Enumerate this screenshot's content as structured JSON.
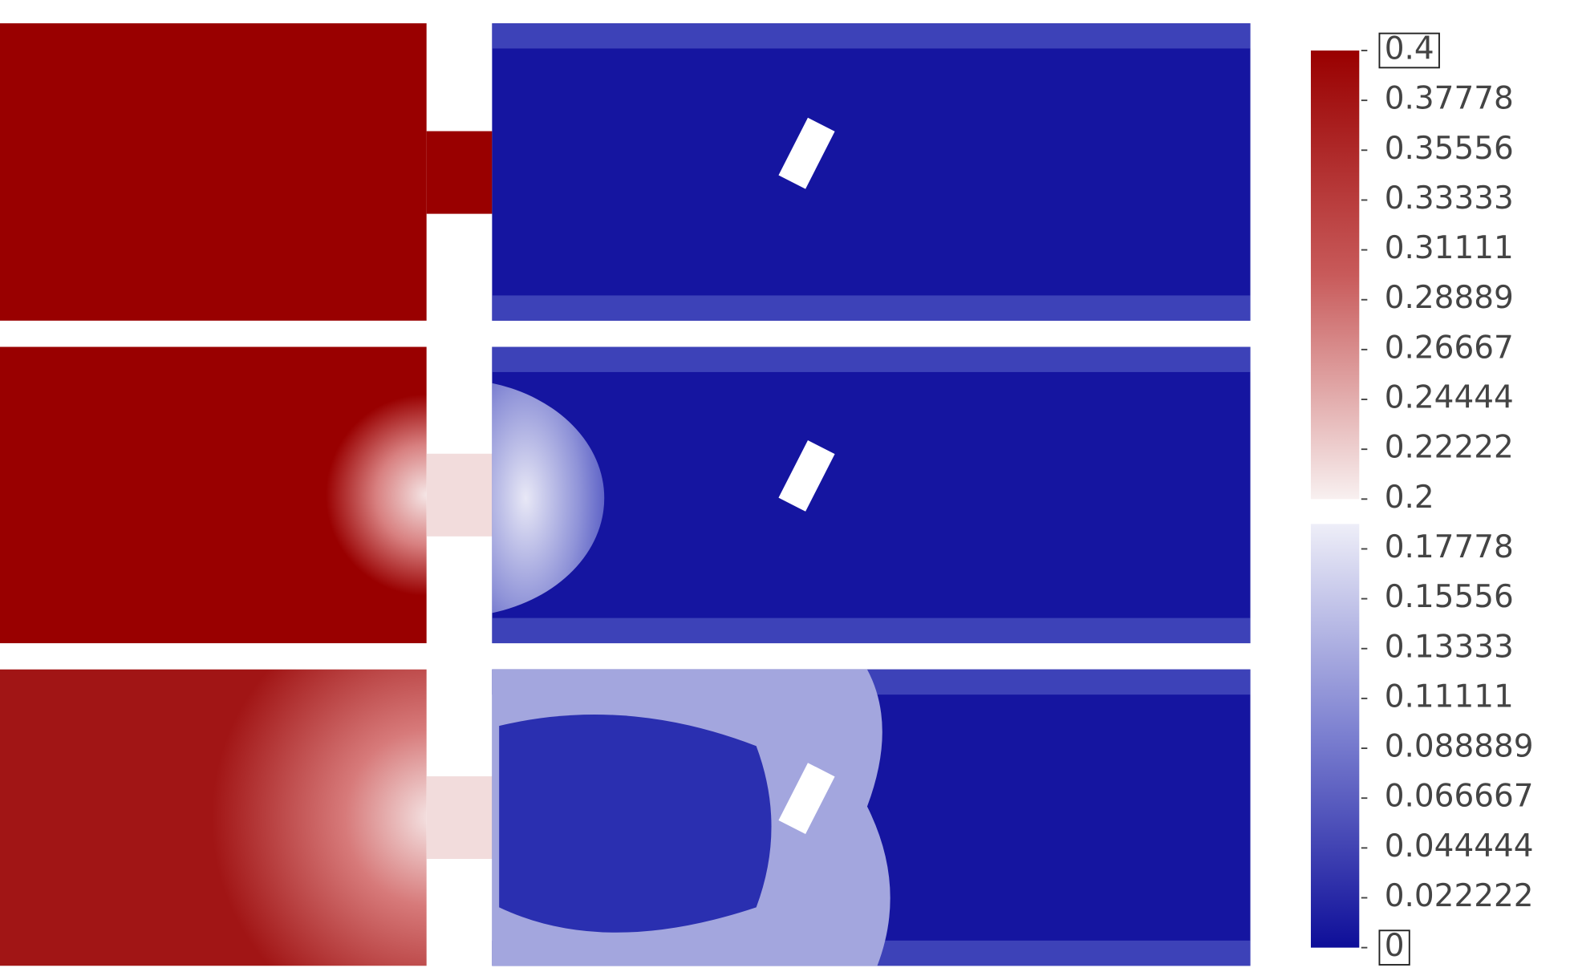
{
  "colorbar": {
    "range": [
      0,
      0.4
    ],
    "ticks": [
      0.4,
      0.37778,
      0.35556,
      0.33333,
      0.31111,
      0.28889,
      0.26667,
      0.24444,
      0.22222,
      0.2,
      0.17778,
      0.15556,
      0.13333,
      0.11111,
      0.088889,
      0.066667,
      0.044444,
      0.022222,
      0
    ]
  }
}
